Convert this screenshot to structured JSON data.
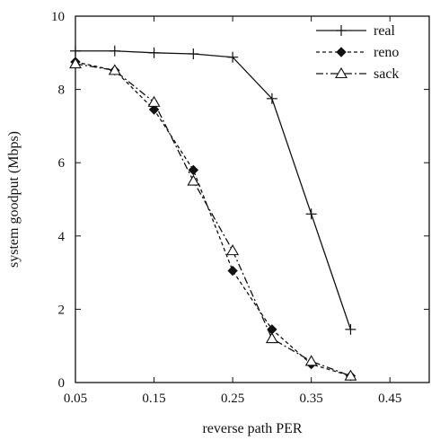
{
  "chart_data": {
    "type": "line",
    "title": "",
    "xlabel": "reverse path PER",
    "ylabel": "system goodput (Mbps)",
    "xlim": [
      0.05,
      0.5
    ],
    "ylim": [
      0,
      10
    ],
    "x_ticks": [
      "0.05",
      "0.15",
      "0.25",
      "0.35",
      "0.45"
    ],
    "y_ticks": [
      "0",
      "2",
      "4",
      "6",
      "8",
      "10"
    ],
    "grid": false,
    "legend_position": "top-right",
    "series": [
      {
        "name": "real",
        "marker": "plus",
        "line": "solid",
        "x": [
          0.05,
          0.1,
          0.15,
          0.2,
          0.25,
          0.3,
          0.35,
          0.4
        ],
        "y": [
          9.05,
          9.05,
          9.0,
          8.97,
          8.88,
          7.75,
          4.6,
          1.45
        ]
      },
      {
        "name": "reno",
        "marker": "diamond",
        "line": "dashed",
        "x": [
          0.05,
          0.1,
          0.15,
          0.2,
          0.25,
          0.3,
          0.35,
          0.4
        ],
        "y": [
          8.75,
          8.52,
          7.45,
          5.8,
          3.05,
          1.45,
          0.5,
          0.18
        ]
      },
      {
        "name": "sack",
        "marker": "triangle",
        "line": "dashdot",
        "x": [
          0.05,
          0.1,
          0.15,
          0.2,
          0.25,
          0.3,
          0.35,
          0.4
        ],
        "y": [
          8.7,
          8.52,
          7.65,
          5.5,
          3.6,
          1.2,
          0.58,
          0.18
        ]
      }
    ]
  }
}
